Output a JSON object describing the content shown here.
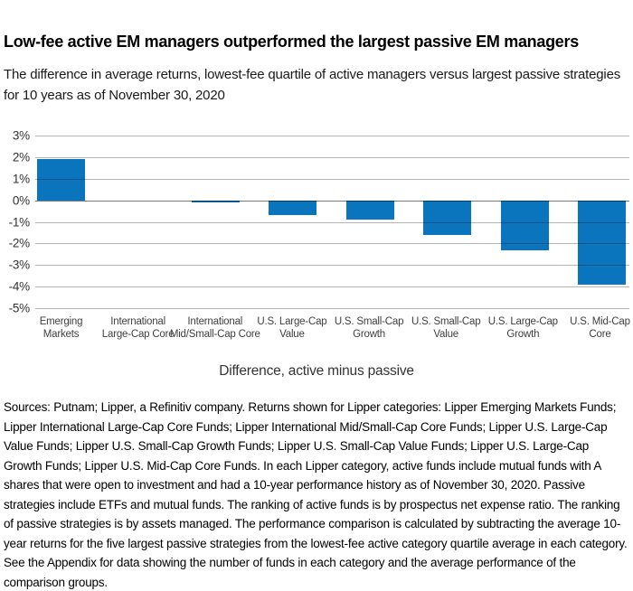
{
  "chart_data": {
    "type": "bar",
    "title": "Low-fee active EM managers outperformed the largest passive EM managers",
    "subtitle": "The difference in average returns, lowest-fee quartile of active managers versus largest passive strategies for 10 years as of November 30, 2020",
    "categories": [
      "Emerging Markets",
      "International Large-Cap Core",
      "International Mid/Small-Cap Core",
      "U.S. Large-Cap Value",
      "U.S. Small-Cap Growth",
      "U.S. Small-Cap Value",
      "U.S. Large-Cap Growth",
      "U.S. Mid-Cap Core"
    ],
    "category_lines": [
      [
        "Emerging",
        "Markets"
      ],
      [
        "International",
        "Large-Cap Core"
      ],
      [
        "International",
        "Mid/Small-Cap Core"
      ],
      [
        "U.S. Large-Cap",
        "Value"
      ],
      [
        "U.S. Small-Cap",
        "Growth"
      ],
      [
        "U.S. Small-Cap",
        "Value"
      ],
      [
        "U.S. Large-Cap",
        "Growth"
      ],
      [
        "U.S. Mid-Cap",
        "Core"
      ]
    ],
    "values": [
      1.9,
      0.0,
      -0.1,
      -0.7,
      -0.9,
      -1.6,
      -2.3,
      -3.9
    ],
    "unit": "%",
    "yticks": [
      3,
      2,
      1,
      0,
      -1,
      -2,
      -3,
      -4,
      -5
    ],
    "ytick_labels": [
      "3%",
      "2%",
      "1%",
      "0%",
      "-1%",
      "-2%",
      "-3%",
      "-4%",
      "-5%"
    ],
    "ylim": [
      -5,
      3
    ],
    "grid": "on",
    "legend": "none",
    "xlabel": "Difference, active minus passive",
    "ylabel": "",
    "bar_color": "#0a75bc"
  },
  "footer": {
    "text": "Sources: Putnam; Lipper, a Refinitiv company. Returns shown for Lipper categories: Lipper Emerging Markets Funds; Lipper International Large-Cap Core Funds; Lipper International Mid/Small-Cap Core Funds; Lipper U.S. Large-Cap Value Funds; Lipper U.S. Small-Cap Growth Funds; Lipper U.S. Small-Cap Value Funds; Lipper U.S. Large-Cap Growth Funds; Lipper U.S. Mid-Cap Core Funds. In each Lipper category, active funds include mutual funds with A shares that were open to investment and had a 10-year performance history as of November 30, 2020. Passive strategies include ETFs and mutual funds. The ranking of active funds is by prospectus net expense ratio. The ranking of passive strategies is by assets managed. The performance comparison is calculated by subtracting the average 10-year returns for the five largest passive strategies from the lowest-fee active category quartile average in each category. See the Appendix for data showing the number of funds in each category and the average performance of the comparison groups."
  }
}
